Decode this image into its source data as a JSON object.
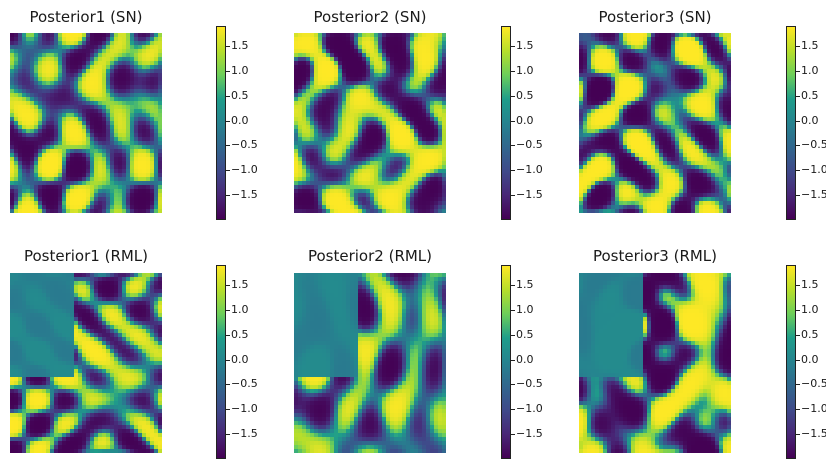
{
  "chart_data": [
    {
      "type": "heatmap",
      "title": "Posterior1 (SN)",
      "colormap": "viridis",
      "vlim": [
        -2.0,
        1.9
      ],
      "colorbar_ticks": [
        "1.5",
        "1.0",
        "0.5",
        "0.0",
        "−0.5",
        "−1.0",
        "−1.5"
      ],
      "pattern": "sn",
      "seed": 3
    },
    {
      "type": "heatmap",
      "title": "Posterior2 (SN)",
      "colormap": "viridis",
      "vlim": [
        -2.0,
        1.9
      ],
      "colorbar_ticks": [
        "1.5",
        "1.0",
        "0.5",
        "0.0",
        "−0.5",
        "−1.0",
        "−1.5"
      ],
      "pattern": "sn",
      "seed": 11
    },
    {
      "type": "heatmap",
      "title": "Posterior3 (SN)",
      "colormap": "viridis",
      "vlim": [
        -2.0,
        1.9
      ],
      "colorbar_ticks": [
        "1.5",
        "1.0",
        "0.5",
        "0.0",
        "−0.5",
        "−1.0",
        "−1.5"
      ],
      "pattern": "sn",
      "seed": 23
    },
    {
      "type": "heatmap",
      "title": "Posterior1 (RML)",
      "colormap": "viridis",
      "vlim": [
        -2.0,
        1.9
      ],
      "colorbar_ticks": [
        "1.5",
        "1.0",
        "0.5",
        "0.0",
        "−0.5",
        "−1.0",
        "−1.5"
      ],
      "pattern": "rml",
      "seed": 5
    },
    {
      "type": "heatmap",
      "title": "Posterior2 (RML)",
      "colormap": "viridis",
      "vlim": [
        -2.0,
        1.9
      ],
      "colorbar_ticks": [
        "1.5",
        "1.0",
        "0.5",
        "0.0",
        "−0.5",
        "−1.0",
        "−1.5"
      ],
      "pattern": "rml",
      "seed": 17
    },
    {
      "type": "heatmap",
      "title": "Posterior3 (RML)",
      "colormap": "viridis",
      "vlim": [
        -2.0,
        1.9
      ],
      "colorbar_ticks": [
        "1.5",
        "1.0",
        "0.5",
        "0.0",
        "−0.5",
        "−1.0",
        "−1.5"
      ],
      "pattern": "rml",
      "seed": 29
    }
  ]
}
